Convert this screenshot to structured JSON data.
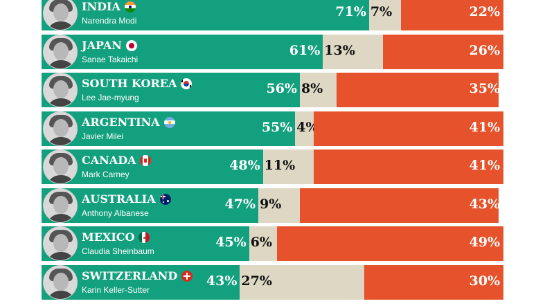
{
  "colors": {
    "approve": "#13a07e",
    "unsure": "#ddd7c4",
    "disapprove": "#e5522b"
  },
  "chart_data": {
    "type": "bar",
    "orientation": "horizontal",
    "stacked": true,
    "categories": [
      "INDIA",
      "JAPAN",
      "SOUTH KOREA",
      "ARGENTINA",
      "CANADA",
      "AUSTRALIA",
      "MEXICO",
      "SWITZERLAND"
    ],
    "leaders": [
      "Narendra Modi",
      "Sanae Takaichi",
      "Lee Jae-myung",
      "Javier Milei",
      "Mark Carney",
      "Anthony Albanese",
      "Claudia Sheinbaum",
      "Karin Keller-Sutter"
    ],
    "flags": [
      "india-flag-icon",
      "japan-flag-icon",
      "south-korea-flag-icon",
      "argentina-flag-icon",
      "canada-flag-icon",
      "australia-flag-icon",
      "mexico-flag-icon",
      "switzerland-flag-icon"
    ],
    "series": [
      {
        "values": [
          71,
          61,
          56,
          55,
          48,
          47,
          45,
          43
        ],
        "labels": [
          "71%",
          "61%",
          "56%",
          "55%",
          "48%",
          "47%",
          "45%",
          "43%"
        ]
      },
      {
        "values": [
          7,
          13,
          8,
          4,
          11,
          9,
          6,
          27
        ],
        "labels": [
          "7%",
          "13%",
          "8%",
          "4%",
          "11%",
          "9%",
          "6%",
          "27%"
        ]
      },
      {
        "values": [
          22,
          26,
          35,
          41,
          41,
          43,
          49,
          30
        ],
        "labels": [
          "22%",
          "26%",
          "35%",
          "41%",
          "41%",
          "43%",
          "49%",
          "30%"
        ]
      }
    ],
    "xlim": [
      0,
      100
    ],
    "grid": false
  }
}
